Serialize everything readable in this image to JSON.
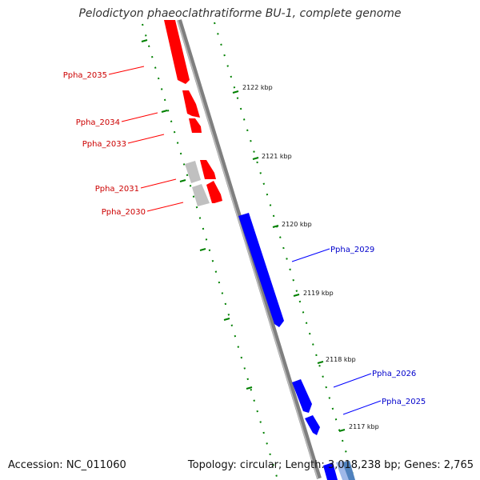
{
  "title": "Pelodictyon phaeoclathratiforme BU-1, complete genome",
  "accession_text": "Accession: NC_011060",
  "summary_text": "Topology: circular; Length: 3,018,238 bp; Genes: 2,765",
  "colors": {
    "forward_gene": "#ff0000",
    "reverse_gene": "#0000ff",
    "other_feature": "#c0c0c0",
    "backbone": "#808080",
    "tick": "#008000"
  },
  "kbp_labels": [
    "2122 kbp",
    "2121 kbp",
    "2120 kbp",
    "2119 kbp",
    "2118 kbp",
    "2117 kbp"
  ],
  "forward_genes": [
    {
      "label": "Ppha_2035"
    },
    {
      "label": "Ppha_2034"
    },
    {
      "label": "Ppha_2033"
    },
    {
      "label": "Ppha_2031"
    },
    {
      "label": "Ppha_2030"
    }
  ],
  "reverse_genes": [
    {
      "label": "Ppha_2029"
    },
    {
      "label": "Ppha_2026"
    },
    {
      "label": "Ppha_2025"
    }
  ]
}
